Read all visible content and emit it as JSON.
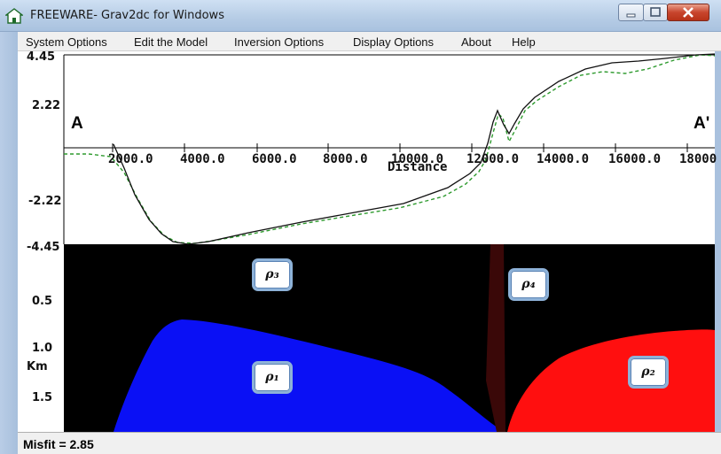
{
  "window": {
    "title": "FREEWARE- Grav2dc for Windows",
    "controls": [
      "minimize",
      "maximize",
      "close"
    ],
    "icon": "house-icon"
  },
  "menu": [
    "System Options",
    "Edit the Model",
    "Inversion Options",
    "Display Options",
    "About",
    "Help"
  ],
  "profile": {
    "label_left": "A",
    "label_right": "A'",
    "y_ticks": [
      "4.45",
      "2.22",
      "-2.22",
      "-4.45"
    ],
    "x_ticks": [
      "2000.0",
      "4000.0",
      "6000.0",
      "8000.0",
      "10000.0",
      "12000.0",
      "14000.0",
      "16000.0",
      "18000"
    ],
    "x_label": "Distance",
    "observed_color": "#111111",
    "calculated_color": "#2e9a2e"
  },
  "model": {
    "depth_ticks": [
      "0.5",
      "1.0",
      "1.5"
    ],
    "depth_unit": "Km",
    "bodies": [
      {
        "symbol": "ρ₃",
        "name": "rho-3",
        "color": "#000000"
      },
      {
        "symbol": "ρ₄",
        "name": "rho-4",
        "color": "#3a0808"
      },
      {
        "symbol": "ρ₁",
        "name": "rho-1",
        "color": "#0a10f5"
      },
      {
        "symbol": "ρ₂",
        "name": "rho-2",
        "color": "#ff0f0f"
      }
    ]
  },
  "status": {
    "misfit": "Misfit =  2.85"
  }
}
